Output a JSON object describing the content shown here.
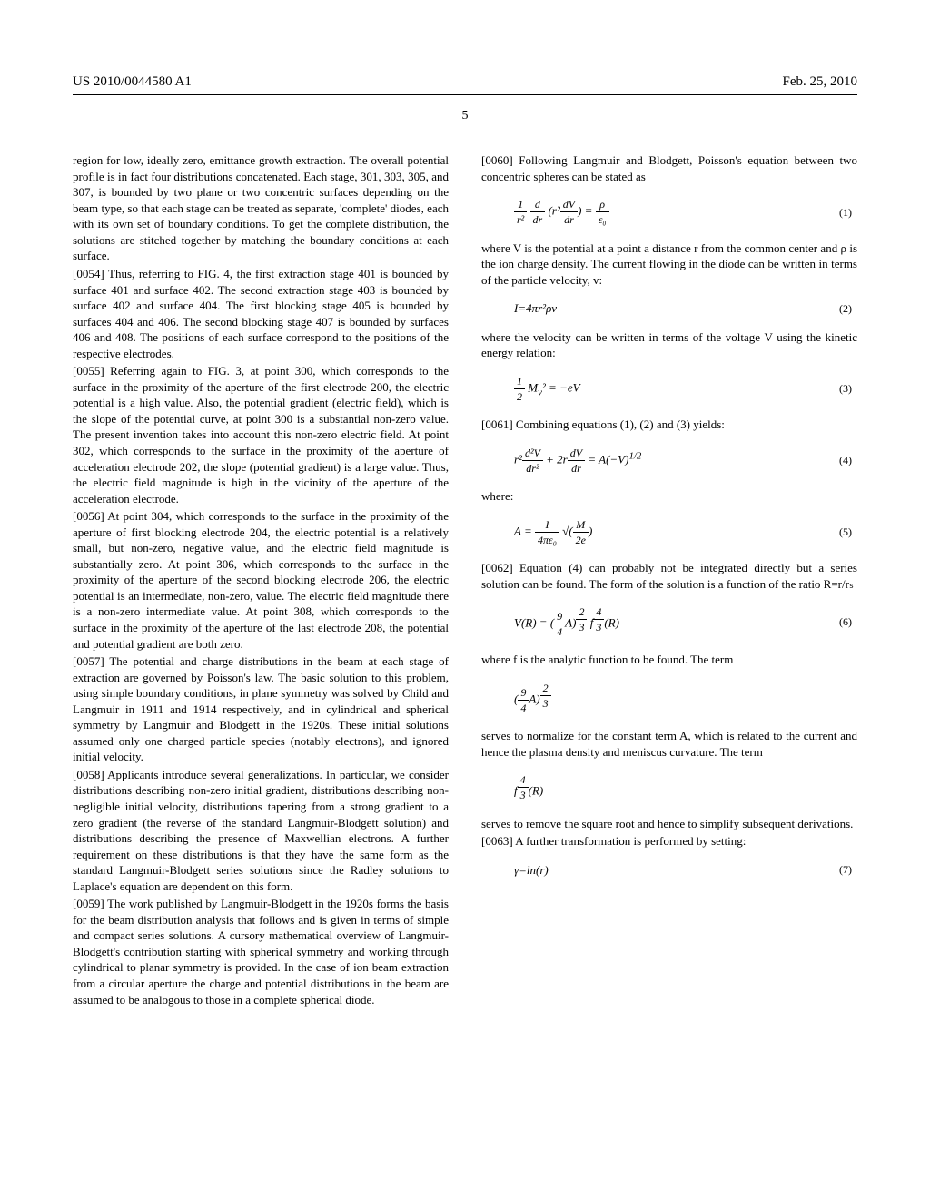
{
  "header": {
    "pub_number": "US 2010/0044580 A1",
    "pub_date": "Feb. 25, 2010",
    "page_label": "5"
  },
  "left_column": {
    "p0053_tail": "region for low, ideally zero, emittance growth extraction. The overall potential profile is in fact four distributions concatenated. Each stage, 301, 303, 305, and 307, is bounded by two plane or two concentric surfaces depending on the beam type, so that each stage can be treated as separate, 'complete' diodes, each with its own set of boundary conditions. To get the complete distribution, the solutions are stitched together by matching the boundary conditions at each surface.",
    "p0054_num": "[0054]",
    "p0054": " Thus, referring to FIG. 4, the first extraction stage 401 is bounded by surface 401 and surface 402. The second extraction stage 403 is bounded by surface 402 and surface 404. The first blocking stage 405 is bounded by surfaces 404 and 406. The second blocking stage 407 is bounded by surfaces 406 and 408. The positions of each surface correspond to the positions of the respective electrodes.",
    "p0055_num": "[0055]",
    "p0055": " Referring again to FIG. 3, at point 300, which corresponds to the surface in the proximity of the aperture of the first electrode 200, the electric potential is a high value. Also, the potential gradient (electric field), which is the slope of the potential curve, at point 300 is a substantial non-zero value. The present invention takes into account this non-zero electric field. At point 302, which corresponds to the surface in the proximity of the aperture of acceleration electrode 202, the slope (potential gradient) is a large value. Thus, the electric field magnitude is high in the vicinity of the aperture of the acceleration electrode.",
    "p0056_num": "[0056]",
    "p0056": " At point 304, which corresponds to the surface in the proximity of the aperture of first blocking electrode 204, the electric potential is a relatively small, but non-zero, negative value, and the electric field magnitude is substantially zero. At point 306, which corresponds to the surface in the proximity of the aperture of the second blocking electrode 206, the electric potential is an intermediate, non-zero, value. The electric field magnitude there is a non-zero intermediate value. At point 308, which corresponds to the surface in the proximity of the aperture of the last electrode 208, the potential and potential gradient are both zero.",
    "p0057_num": "[0057]",
    "p0057": " The potential and charge distributions in the beam at each stage of extraction are governed by Poisson's law. The basic solution to this problem, using simple boundary conditions, in plane symmetry was solved by Child and Langmuir in 1911 and 1914 respectively, and in cylindrical and spherical symmetry by Langmuir and Blodgett in the 1920s. These initial solutions assumed only one charged particle species (notably electrons), and ignored initial velocity.",
    "p0058_num": "[0058]",
    "p0058": " Applicants introduce several generalizations. In particular, we consider distributions describing non-zero initial gradient, distributions describing non-negligible initial velocity, distributions tapering from a strong gradient to a zero gradient (the reverse of the standard Langmuir-Blodgett solution) and distributions describing the presence of Maxwellian electrons. A further requirement on these distributions is that they have the same form as the standard Langmuir-Blodgett series solutions since the Radley solutions to Laplace's equation are dependent on this form.",
    "p0059_num": "[0059]",
    "p0059": " The work published by Langmuir-Blodgett in the 1920s forms the basis for the beam distribution analysis that follows and is given in terms of simple and compact series solutions. A cursory mathematical overview of Langmuir-Blodgett's contribution starting with spherical symmetry and working through cylindrical to planar symmetry is provided. In the case of ion beam extraction from a circular aperture the charge and potential distributions in the beam are assumed to be analogous to those in a complete spherical diode."
  },
  "right_column": {
    "p0060_num": "[0060]",
    "p0060": " Following Langmuir and Blodgett, Poisson's equation between two concentric spheres can be stated as",
    "eq1_num": "(1)",
    "p0060b": "where V is the potential at a point a distance r from the common center and ρ is the ion charge density. The current flowing in the diode can be written in terms of the particle velocity, v:",
    "eq2": "I=4πr²ρv",
    "eq2_num": "(2)",
    "p0060c": "where the velocity can be written in terms of the voltage V using the kinetic energy relation:",
    "eq3_num": "(3)",
    "p0061_num": "[0061]",
    "p0061": " Combining equations (1), (2) and (3) yields:",
    "eq4_num": "(4)",
    "p0061b": "where:",
    "eq5_num": "(5)",
    "p0062_num": "[0062]",
    "p0062": " Equation (4) can probably not be integrated directly but a series solution can be found. The form of the solution is a function of the ratio R=r/rₛ",
    "eq6_num": "(6)",
    "p0062b": "where f is the analytic function to be found. The term",
    "p0062c": "serves to normalize for the constant term A, which is related to the current and hence the plasma density and meniscus curvature. The term",
    "p0062d": "serves to remove the square root and hence to simplify subsequent derivations.",
    "p0063_num": "[0063]",
    "p0063": " A further transformation is performed by setting:",
    "eq7": "γ=ln(r)",
    "eq7_num": "(7)"
  }
}
